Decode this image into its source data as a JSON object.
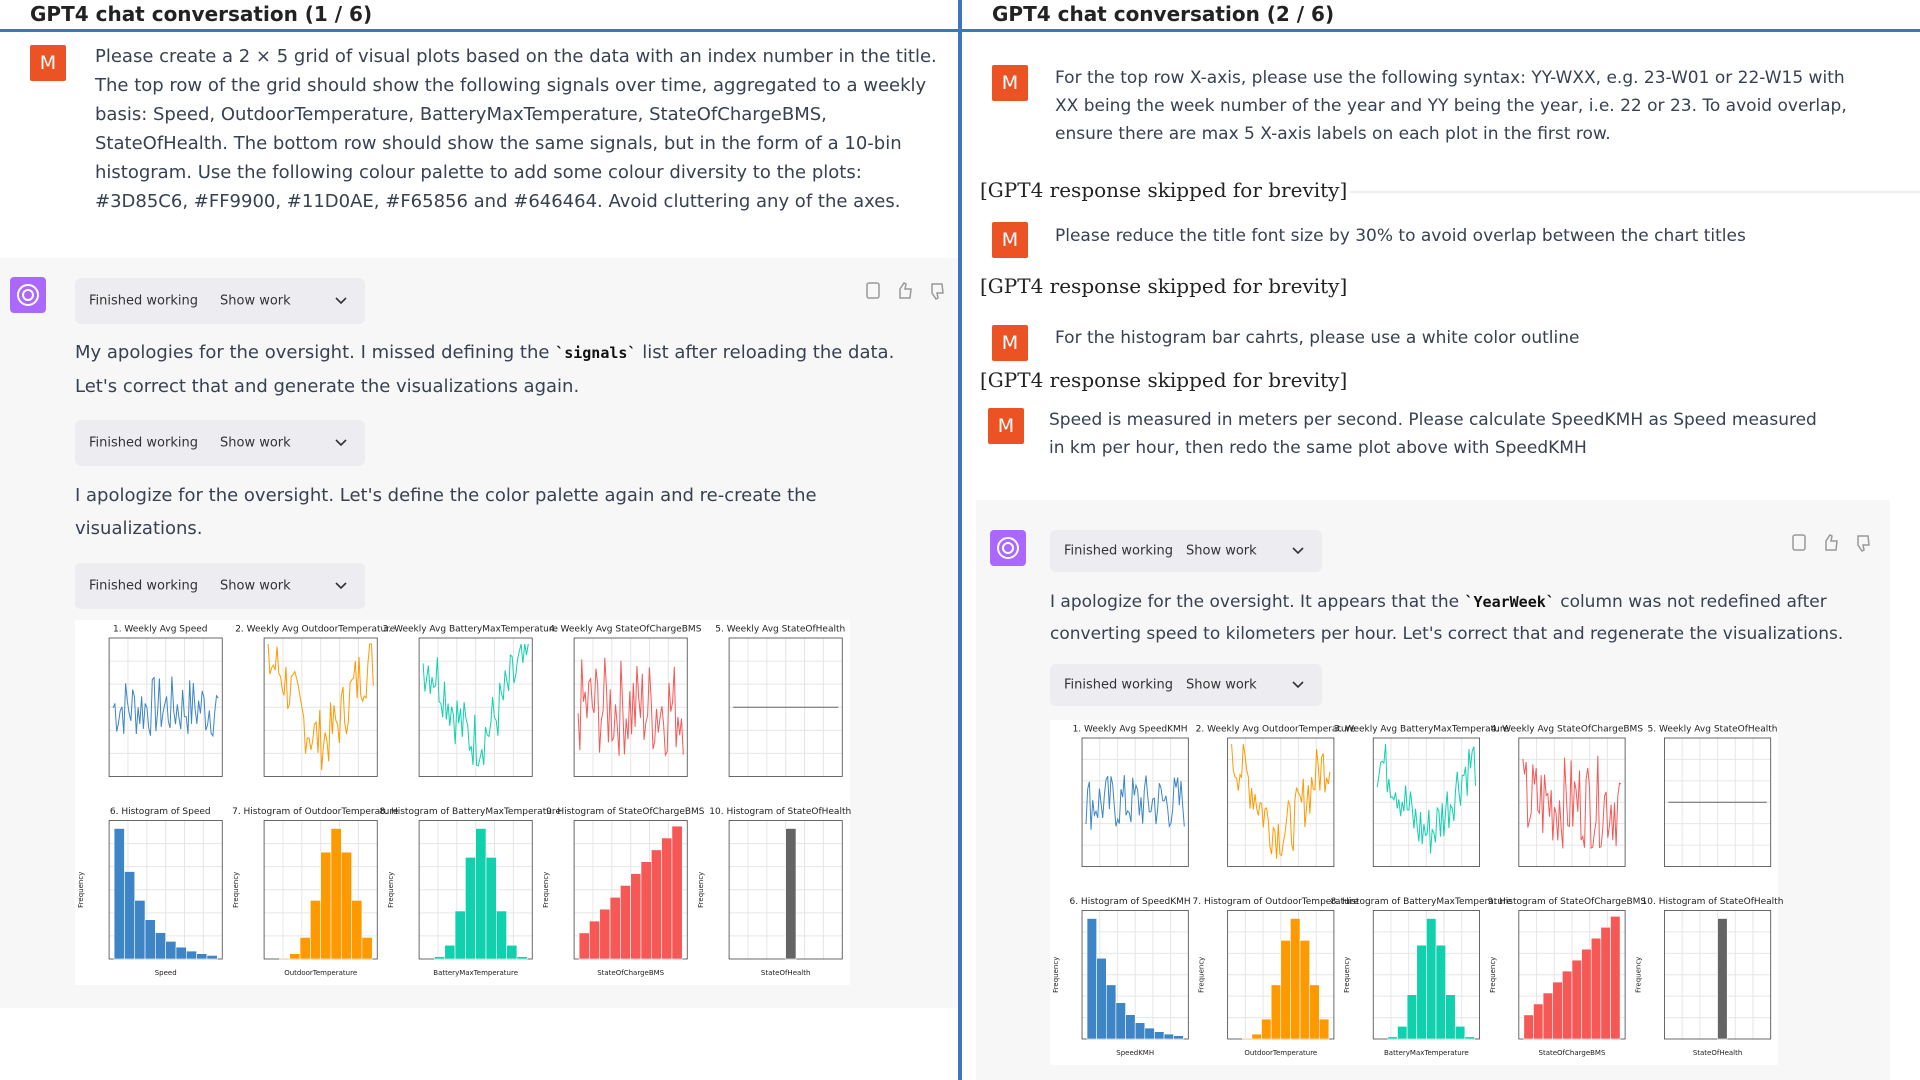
{
  "left": {
    "header": "GPT4 chat conversation (1 / 6)",
    "prompt": {
      "avatar": "M",
      "lines": [
        "Please create a 2 × 5 grid of visual plots based on the data with an index number in the title.",
        "The top row of the grid should show the following signals over time, aggregated to a weekly",
        "basis: Speed, OutdoorTemperature, BatteryMaxTemperature, StateOfChargeBMS,",
        "StateOfHealth. The bottom row should show the same signals, but in the form of a 10-bin",
        "histogram. Use the following colour palette to add some colour diversity to the plots:",
        "#3D85C6, #FF9900, #11D0AE, #F65856 and #646464. Avoid cluttering any of the axes."
      ]
    },
    "pills": [
      {
        "status": "Finished working",
        "toggle": "Show work"
      },
      {
        "status": "Finished working",
        "toggle": "Show work"
      },
      {
        "status": "Finished working",
        "toggle": "Show work"
      }
    ],
    "paragraphs": [
      [
        [
          "My apologies for the oversight. I missed defining the ",
          "`signals`",
          " list after reloading the data."
        ],
        [
          "Let's correct that and generate the visualizations again."
        ]
      ],
      [
        [
          "I apologize for the oversight. Let's define the color palette again and re-create the"
        ],
        [
          "visualizations."
        ]
      ]
    ],
    "grid": {
      "colors": [
        "#3D85C6",
        "#FF9900",
        "#11D0AE",
        "#F65856",
        "#646464"
      ],
      "top_titles": [
        "1. Weekly Avg Speed",
        "2. Weekly Avg OutdoorTemperature",
        "3. Weekly Avg BatteryMaxTemperature",
        "4. Weekly Avg StateOfChargeBMS",
        "5. Weekly Avg StateOfHealth"
      ],
      "bottom_titles": [
        "6. Histogram of Speed",
        "7. Histogram of OutdoorTemperature",
        "8. Histogram of BatteryMaxTemperature",
        "9. Histogram of StateOfChargeBMS",
        "10. Histogram of StateOfHealth"
      ],
      "x_labels": [
        "Speed",
        "OutdoorTemperature",
        "BatteryMaxTemperature",
        "StateOfChargeBMS",
        "StateOfHealth"
      ],
      "y_label": "Frequency"
    }
  },
  "right": {
    "header": "GPT4 chat conversation (2 / 6)",
    "prompts": [
      {
        "avatar": "M",
        "lines": [
          "For the top row X-axis, please use the following syntax: YY-WXX, e.g. 23-W01 or 22-W15 with",
          "XX being the week number of the year and YY being the year, i.e. 22 or 23. To avoid overlap,",
          "ensure there are max 5 X-axis labels on each plot in the first row."
        ]
      },
      {
        "avatar": "M",
        "lines": [
          "Please reduce the title font size by 30% to avoid overlap between the chart titles"
        ]
      },
      {
        "avatar": "M",
        "lines": [
          "For the histogram bar cahrts, please use a white color outline"
        ]
      },
      {
        "avatar": "M",
        "lines": [
          "Speed is measured in meters per second. Please calculate SpeedKMH as Speed measured",
          "in km per hour, then redo the same plot above with SpeedKMH"
        ]
      }
    ],
    "skipped": [
      "[GPT4 response skipped for brevity]",
      "[GPT4 response skipped for brevity]",
      "[GPT4 response skipped for brevity]"
    ],
    "pills": [
      {
        "status": "Finished working",
        "toggle": "Show work"
      },
      {
        "status": "Finished working",
        "toggle": "Show work"
      }
    ],
    "paragraph": [
      [
        "I apologize for the oversight. It appears that the ",
        "`YearWeek`",
        " column was not redefined after"
      ],
      [
        "converting speed to kilometers per hour. Let's correct that and regenerate the visualizations."
      ]
    ],
    "grid": {
      "colors": [
        "#3D85C6",
        "#FF9900",
        "#11D0AE",
        "#F65856",
        "#646464"
      ],
      "top_titles": [
        "1. Weekly Avg SpeedKMH",
        "2. Weekly Avg OutdoorTemperature",
        "3. Weekly Avg BatteryMaxTemperature",
        "4. Weekly Avg StateOfChargeBMS",
        "5. Weekly Avg StateOfHealth"
      ],
      "bottom_titles": [
        "6. Histogram of SpeedKMH",
        "7. Histogram of OutdoorTemperature",
        "8. Histogram of BatteryMaxTemperature",
        "9. Histogram of StateOfChargeBMS",
        "10. Histogram of StateOfHealth"
      ],
      "x_labels": [
        "SpeedKMH",
        "OutdoorTemperature",
        "BatteryMaxTemperature",
        "StateOfChargeBMS",
        "StateOfHealth"
      ],
      "y_label": "Frequency"
    }
  }
}
